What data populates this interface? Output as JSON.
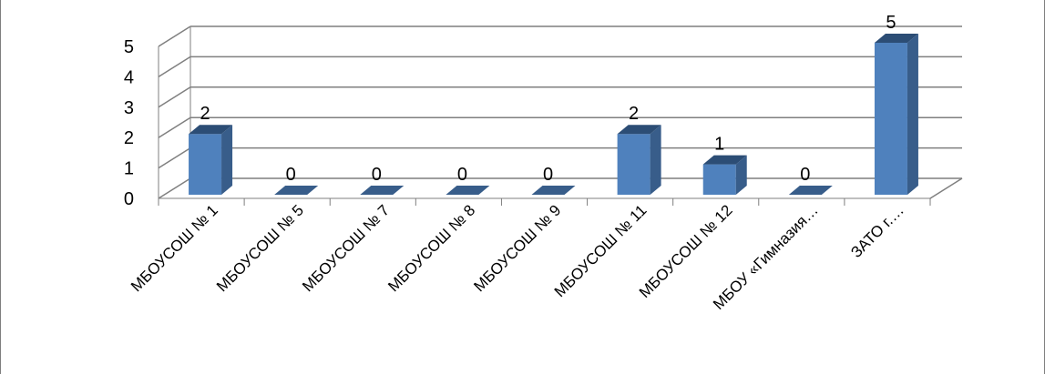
{
  "chart_data": {
    "type": "bar",
    "style": "3d-column",
    "categories": [
      "МБОУСОШ № 1",
      "МБОУСОШ № 5",
      "МБОУСОШ № 7",
      "МБОУСОШ № 8",
      "МБОУСОШ № 9",
      "МБОУСОШ № 11",
      "МБОУСОШ № 12",
      "МБОУ «Гимназия…",
      "ЗАТО г.…"
    ],
    "values": [
      2,
      0,
      0,
      0,
      0,
      2,
      1,
      0,
      5
    ],
    "data_labels": [
      "2",
      "0",
      "0",
      "0",
      "0",
      "2",
      "1",
      "0",
      "5"
    ],
    "y_ticks": [
      "0",
      "1",
      "2",
      "3",
      "4",
      "5"
    ],
    "ylim": [
      0,
      5
    ],
    "grid": true,
    "legend": "none",
    "colors": {
      "bar_front": "#4f81bd",
      "bar_side": "#385d8a",
      "bar_top": "#2c4d75",
      "gridline": "#7f7f7f",
      "axis": "#7f7f7f"
    }
  }
}
